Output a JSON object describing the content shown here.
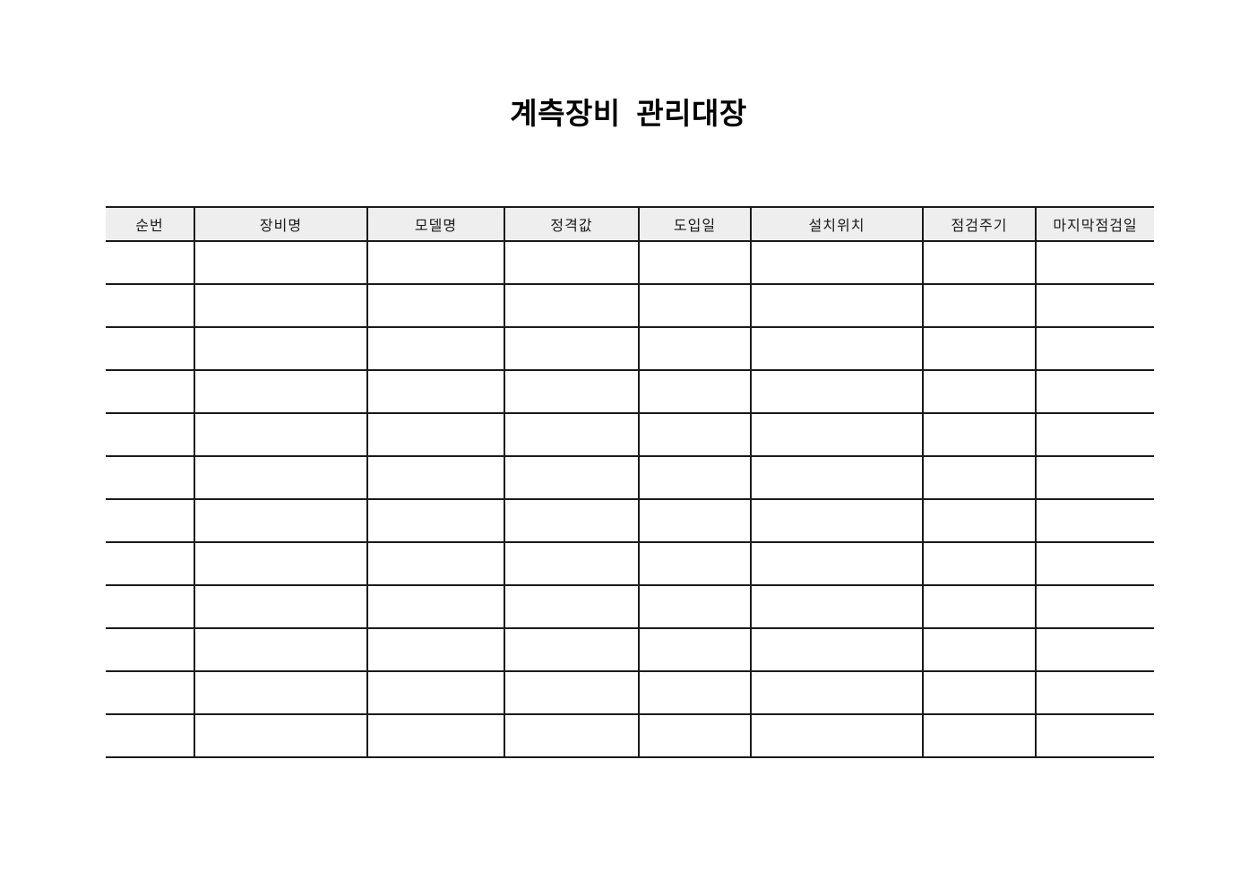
{
  "page": {
    "title": "계측장비 관리대장"
  },
  "table": {
    "columns": [
      "순번",
      "장비명",
      "모델명",
      "정격값",
      "도입일",
      "설치위치",
      "점검주기",
      "마지막점검일"
    ],
    "rows": [
      [
        "",
        "",
        "",
        "",
        "",
        "",
        "",
        ""
      ],
      [
        "",
        "",
        "",
        "",
        "",
        "",
        "",
        ""
      ],
      [
        "",
        "",
        "",
        "",
        "",
        "",
        "",
        ""
      ],
      [
        "",
        "",
        "",
        "",
        "",
        "",
        "",
        ""
      ],
      [
        "",
        "",
        "",
        "",
        "",
        "",
        "",
        ""
      ],
      [
        "",
        "",
        "",
        "",
        "",
        "",
        "",
        ""
      ],
      [
        "",
        "",
        "",
        "",
        "",
        "",
        "",
        ""
      ],
      [
        "",
        "",
        "",
        "",
        "",
        "",
        "",
        ""
      ],
      [
        "",
        "",
        "",
        "",
        "",
        "",
        "",
        ""
      ],
      [
        "",
        "",
        "",
        "",
        "",
        "",
        "",
        ""
      ],
      [
        "",
        "",
        "",
        "",
        "",
        "",
        "",
        ""
      ],
      [
        "",
        "",
        "",
        "",
        "",
        "",
        "",
        ""
      ]
    ]
  },
  "colors": {
    "page_bg": "#ffffff",
    "header_bg": "#eeeeee",
    "header_text": "#1a1a1a",
    "border": "#1a1a1a",
    "title_text": "#000000"
  }
}
